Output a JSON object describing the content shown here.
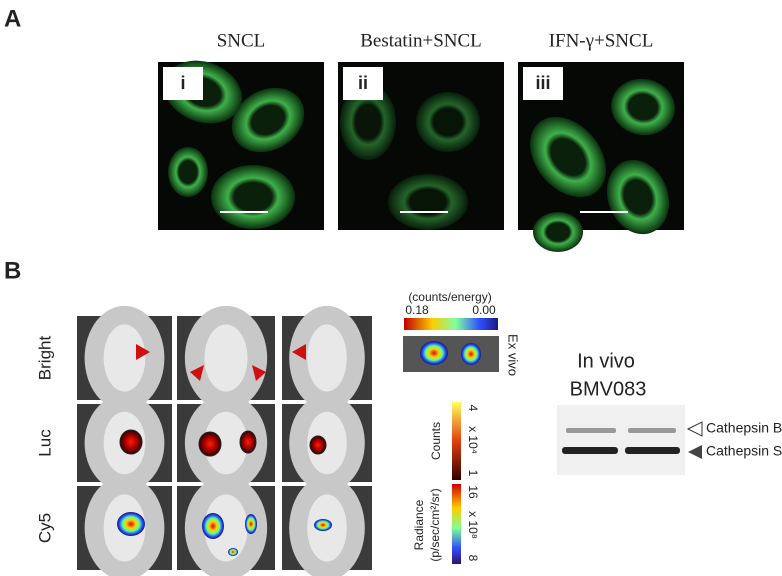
{
  "panel_a": {
    "label": "A",
    "images": [
      {
        "title": "SNCL",
        "tag": "i"
      },
      {
        "title": "Bestatin+SNCL",
        "tag": "ii"
      },
      {
        "title": "IFN-γ+SNCL",
        "tag": "iii"
      }
    ]
  },
  "panel_b": {
    "label": "B",
    "rows": [
      "Bright",
      "Luc",
      "Cy5"
    ],
    "ex_vivo": {
      "unit": "(counts/energy)",
      "max": "0.18",
      "min": "0.00",
      "label": "Ex vivo"
    },
    "luc_scale": {
      "max": "4",
      "multiplier": "x 10⁴",
      "min": "1",
      "label": "Counts"
    },
    "cy5_scale": {
      "max": "16",
      "multiplier": "x 10⁸",
      "min": "8",
      "label": "Radiance",
      "unit": "(p/sec/cm²/sr)"
    },
    "blot": {
      "title": [
        "In vivo",
        "BMV083"
      ],
      "bands": [
        "Cathepsin B",
        "Cathepsin S"
      ]
    }
  }
}
